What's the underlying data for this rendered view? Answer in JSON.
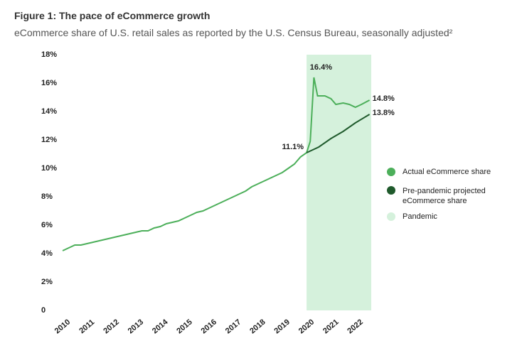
{
  "chart_data": {
    "type": "line",
    "title": "Figure 1: The pace of eCommerce growth",
    "subtitle": "eCommerce share of U.S. retail sales as reported by the U.S. Census Bureau, seasonally adjusted²",
    "series": [
      {
        "name": "Actual eCommerce share",
        "color": "#4caf5a",
        "x": [
          2010,
          2010.25,
          2010.5,
          2010.75,
          2011,
          2011.25,
          2011.5,
          2011.75,
          2012,
          2012.25,
          2012.5,
          2012.75,
          2013,
          2013.25,
          2013.5,
          2013.75,
          2014,
          2014.25,
          2014.5,
          2014.75,
          2015,
          2015.25,
          2015.5,
          2015.75,
          2016,
          2016.25,
          2016.5,
          2016.75,
          2017,
          2017.25,
          2017.5,
          2017.75,
          2018,
          2018.25,
          2018.5,
          2018.75,
          2019,
          2019.25,
          2019.5,
          2019.75,
          2020,
          2020.15,
          2020.3,
          2020.45,
          2020.75,
          2021,
          2021.2,
          2021.5,
          2021.75,
          2022,
          2022.25,
          2022.58
        ],
        "values": [
          4.2,
          4.4,
          4.6,
          4.6,
          4.7,
          4.8,
          4.9,
          5.0,
          5.1,
          5.2,
          5.3,
          5.4,
          5.5,
          5.6,
          5.6,
          5.8,
          5.9,
          6.1,
          6.2,
          6.3,
          6.5,
          6.7,
          6.9,
          7.0,
          7.2,
          7.4,
          7.6,
          7.8,
          8.0,
          8.2,
          8.4,
          8.7,
          8.9,
          9.1,
          9.3,
          9.5,
          9.7,
          10.0,
          10.3,
          10.8,
          11.1,
          11.9,
          16.4,
          15.1,
          15.1,
          14.9,
          14.5,
          14.6,
          14.5,
          14.3,
          14.5,
          14.8
        ],
        "value_labels": [
          null,
          null,
          null,
          null,
          null,
          null,
          null,
          null,
          null,
          null,
          null,
          null,
          null,
          null,
          null,
          null,
          null,
          null,
          null,
          null,
          null,
          null,
          null,
          null,
          null,
          null,
          null,
          null,
          null,
          null,
          null,
          null,
          null,
          null,
          null,
          null,
          null,
          null,
          null,
          null,
          "11.1%",
          null,
          "16.4%",
          null,
          null,
          null,
          null,
          null,
          null,
          null,
          null,
          "14.8%"
        ]
      },
      {
        "name": "Pre-pandemic projected eCommerce share",
        "color": "#1f5a2c",
        "x": [
          2020,
          2020.5,
          2021,
          2021.5,
          2022,
          2022.58
        ],
        "values": [
          11.1,
          11.5,
          12.1,
          12.6,
          13.2,
          13.8
        ],
        "value_labels": [
          null,
          null,
          null,
          null,
          null,
          "13.8%"
        ]
      }
    ],
    "shade": {
      "name": "Pandemic",
      "color": "#d5f1dc",
      "x": [
        2020,
        2022.65
      ]
    },
    "xlim": [
      2009.24,
      2022.65
    ],
    "xticks": [
      2010,
      2011,
      2012,
      2013,
      2014,
      2015,
      2016,
      2017,
      2018,
      2019,
      2020,
      2021,
      2022
    ],
    "ylim": [
      0,
      18
    ],
    "yticks": [
      0,
      {
        "value": 2,
        "label": "2%"
      },
      {
        "value": 4,
        "label": "4%"
      },
      {
        "value": 6,
        "label": "6%"
      },
      {
        "value": 8,
        "label": "8%"
      },
      {
        "value": 10,
        "label": "10%"
      },
      {
        "value": 12,
        "label": "12%"
      },
      {
        "value": 14,
        "label": "14%"
      },
      {
        "value": 16,
        "label": "16%"
      },
      {
        "value": 18,
        "label": "18%"
      }
    ],
    "grid": false
  }
}
